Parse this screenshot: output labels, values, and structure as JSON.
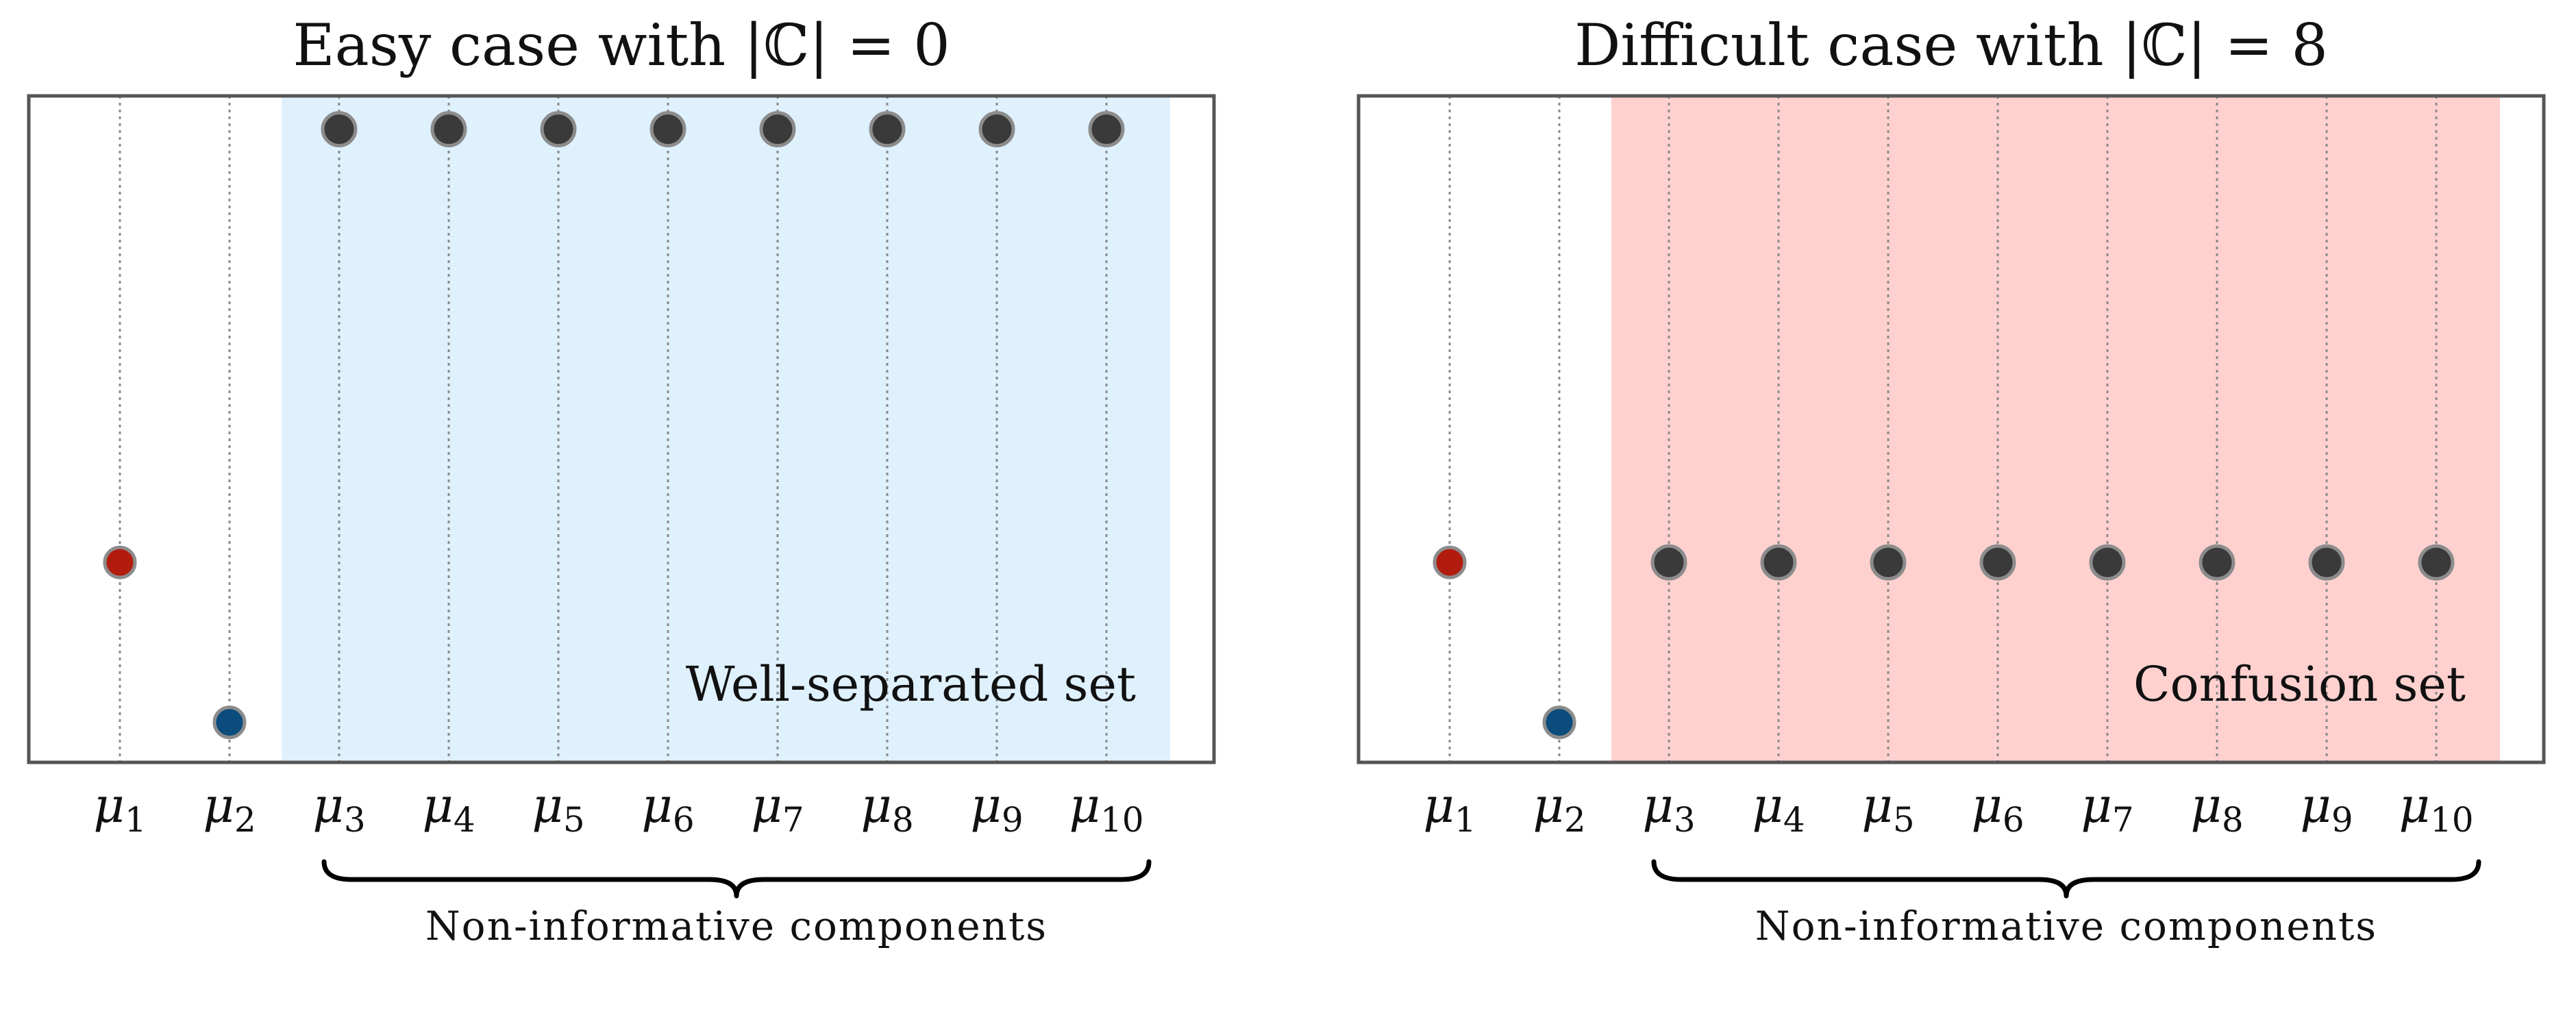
{
  "chart_data": [
    {
      "type": "scatter",
      "title": "Easy case with |ℂ| = 0",
      "categories": [
        "μ1",
        "μ2",
        "μ3",
        "μ4",
        "μ5",
        "μ6",
        "μ7",
        "μ8",
        "μ9",
        "μ10"
      ],
      "tick_labels": [
        {
          "base": "μ",
          "sub": "1"
        },
        {
          "base": "μ",
          "sub": "2"
        },
        {
          "base": "μ",
          "sub": "3"
        },
        {
          "base": "μ",
          "sub": "4"
        },
        {
          "base": "μ",
          "sub": "5"
        },
        {
          "base": "μ",
          "sub": "6"
        },
        {
          "base": "μ",
          "sub": "7"
        },
        {
          "base": "μ",
          "sub": "8"
        },
        {
          "base": "μ",
          "sub": "9"
        },
        {
          "base": "μ",
          "sub": "10"
        }
      ],
      "ylim": [
        0,
        1
      ],
      "points": [
        {
          "x": 1,
          "y": 0.3,
          "color": "#b21c0e"
        },
        {
          "x": 2,
          "y": 0.06,
          "color": "#0b4c7c"
        },
        {
          "x": 3,
          "y": 0.95,
          "color": "#3a3a3a"
        },
        {
          "x": 4,
          "y": 0.95,
          "color": "#3a3a3a"
        },
        {
          "x": 5,
          "y": 0.95,
          "color": "#3a3a3a"
        },
        {
          "x": 6,
          "y": 0.95,
          "color": "#3a3a3a"
        },
        {
          "x": 7,
          "y": 0.95,
          "color": "#3a3a3a"
        },
        {
          "x": 8,
          "y": 0.95,
          "color": "#3a3a3a"
        },
        {
          "x": 9,
          "y": 0.95,
          "color": "#3a3a3a"
        },
        {
          "x": 10,
          "y": 0.95,
          "color": "#3a3a3a"
        }
      ],
      "region": {
        "from": 3,
        "to": 10,
        "color": "#dff1fd",
        "label": "Well-separated set"
      },
      "brace_label": "Non-informative components",
      "grid": "vertical-dotted"
    },
    {
      "type": "scatter",
      "title": "Difficult case with |ℂ| = 8",
      "categories": [
        "μ1",
        "μ2",
        "μ3",
        "μ4",
        "μ5",
        "μ6",
        "μ7",
        "μ8",
        "μ9",
        "μ10"
      ],
      "tick_labels": [
        {
          "base": "μ",
          "sub": "1"
        },
        {
          "base": "μ",
          "sub": "2"
        },
        {
          "base": "μ",
          "sub": "3"
        },
        {
          "base": "μ",
          "sub": "4"
        },
        {
          "base": "μ",
          "sub": "5"
        },
        {
          "base": "μ",
          "sub": "6"
        },
        {
          "base": "μ",
          "sub": "7"
        },
        {
          "base": "μ",
          "sub": "8"
        },
        {
          "base": "μ",
          "sub": "9"
        },
        {
          "base": "μ",
          "sub": "10"
        }
      ],
      "ylim": [
        0,
        1
      ],
      "points": [
        {
          "x": 1,
          "y": 0.3,
          "color": "#b21c0e"
        },
        {
          "x": 2,
          "y": 0.06,
          "color": "#0b4c7c"
        },
        {
          "x": 3,
          "y": 0.3,
          "color": "#3a3a3a"
        },
        {
          "x": 4,
          "y": 0.3,
          "color": "#3a3a3a"
        },
        {
          "x": 5,
          "y": 0.3,
          "color": "#3a3a3a"
        },
        {
          "x": 6,
          "y": 0.3,
          "color": "#3a3a3a"
        },
        {
          "x": 7,
          "y": 0.3,
          "color": "#3a3a3a"
        },
        {
          "x": 8,
          "y": 0.3,
          "color": "#3a3a3a"
        },
        {
          "x": 9,
          "y": 0.3,
          "color": "#3a3a3a"
        },
        {
          "x": 10,
          "y": 0.3,
          "color": "#3a3a3a"
        }
      ],
      "region": {
        "from": 3,
        "to": 10,
        "color": "#fed1cf",
        "label": "Confusion set"
      },
      "brace_label": "Non-informative components",
      "grid": "vertical-dotted"
    }
  ]
}
